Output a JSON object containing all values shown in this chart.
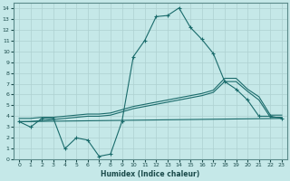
{
  "xlabel": "Humidex (Indice chaleur)",
  "xlim": [
    -0.5,
    23.5
  ],
  "ylim": [
    0,
    14.5
  ],
  "xticks": [
    0,
    1,
    2,
    3,
    4,
    5,
    6,
    7,
    8,
    9,
    10,
    11,
    12,
    13,
    14,
    15,
    16,
    17,
    18,
    19,
    20,
    21,
    22,
    23
  ],
  "yticks": [
    0,
    1,
    2,
    3,
    4,
    5,
    6,
    7,
    8,
    9,
    10,
    11,
    12,
    13,
    14
  ],
  "bg_color": "#c5e8e8",
  "grid_color": "#aed0d0",
  "line_color": "#1a6b6b",
  "line1_x": [
    0,
    1,
    2,
    3,
    4,
    5,
    6,
    7,
    8,
    9,
    10,
    11,
    12,
    13,
    14,
    15,
    16,
    17,
    18,
    19,
    20,
    21,
    22,
    23
  ],
  "line1_y": [
    3.5,
    3.0,
    3.8,
    3.8,
    1.0,
    2.0,
    1.8,
    0.3,
    0.5,
    3.5,
    9.5,
    11.0,
    13.2,
    13.3,
    14.0,
    12.2,
    11.1,
    9.8,
    7.2,
    6.5,
    5.5,
    4.0,
    4.0,
    3.8
  ],
  "line2_x": [
    0,
    1,
    2,
    3,
    4,
    5,
    6,
    7,
    8,
    9,
    10,
    11,
    12,
    13,
    14,
    15,
    16,
    17,
    18,
    19,
    20,
    21,
    22,
    23
  ],
  "line2_y": [
    3.5,
    3.5,
    3.6,
    3.7,
    3.8,
    3.9,
    4.0,
    4.0,
    4.1,
    4.4,
    4.7,
    4.9,
    5.1,
    5.3,
    5.5,
    5.7,
    5.9,
    6.2,
    7.2,
    7.2,
    6.3,
    5.5,
    3.9,
    3.9
  ],
  "line3_x": [
    0,
    1,
    2,
    3,
    4,
    5,
    6,
    7,
    8,
    9,
    10,
    11,
    12,
    13,
    14,
    15,
    16,
    17,
    18,
    19,
    20,
    21,
    22,
    23
  ],
  "line3_y": [
    3.8,
    3.8,
    3.9,
    3.9,
    4.0,
    4.1,
    4.2,
    4.2,
    4.3,
    4.6,
    4.9,
    5.1,
    5.3,
    5.5,
    5.7,
    5.9,
    6.1,
    6.4,
    7.5,
    7.5,
    6.5,
    5.8,
    4.1,
    4.1
  ],
  "line4_x": [
    0,
    23
  ],
  "line4_y": [
    3.5,
    3.8
  ]
}
